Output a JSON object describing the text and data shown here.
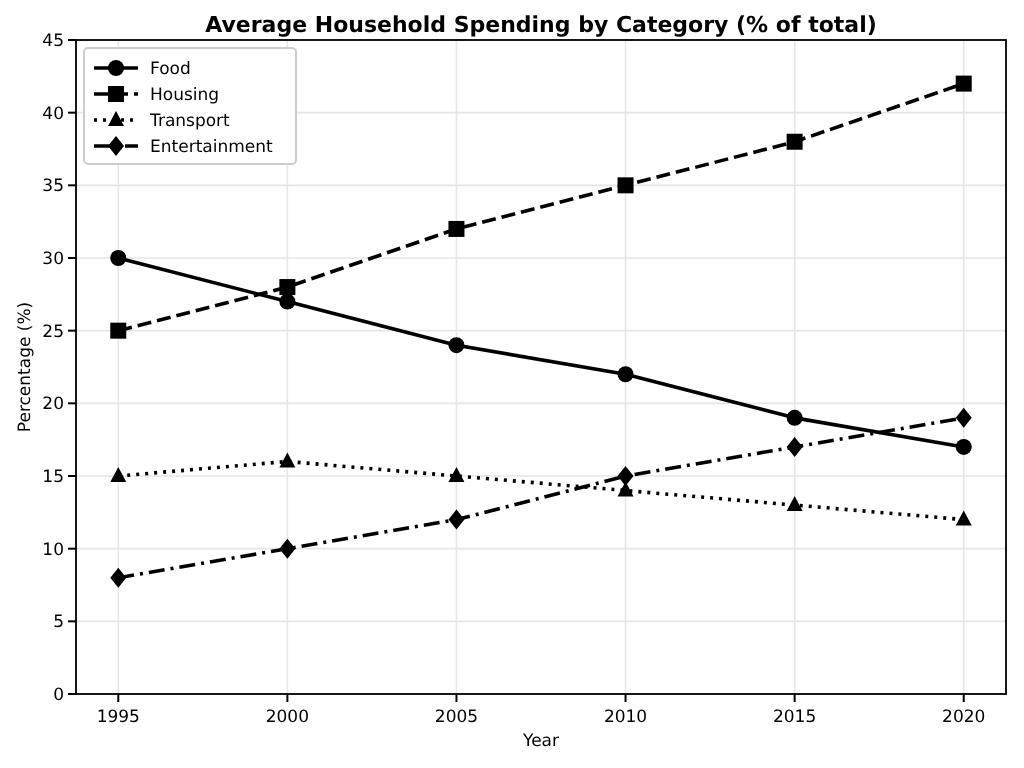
{
  "chart_data": {
    "type": "line",
    "title": "Average Household Spending by Category (% of total)",
    "xlabel": "Year",
    "ylabel": "Percentage (%)",
    "x": [
      1995,
      2000,
      2005,
      2010,
      2015,
      2020
    ],
    "series": [
      {
        "name": "Food",
        "color": "#000000",
        "values": [
          30,
          27,
          24,
          22,
          19,
          17
        ],
        "marker": "circle",
        "line_style": "solid"
      },
      {
        "name": "Housing",
        "color": "#000000",
        "values": [
          25,
          28,
          32,
          35,
          38,
          42
        ],
        "marker": "square",
        "line_style": "dashed"
      },
      {
        "name": "Transport",
        "color": "#000000",
        "values": [
          15,
          16,
          15,
          14,
          13,
          12
        ],
        "marker": "triangle",
        "line_style": "dotted"
      },
      {
        "name": "Entertainment",
        "color": "#000000",
        "values": [
          8,
          10,
          12,
          15,
          17,
          19
        ],
        "marker": "diamond",
        "line_style": "dashdot"
      }
    ],
    "xlim": [
      1993.75,
      2021.25
    ],
    "xticks": [
      1995,
      2000,
      2005,
      2010,
      2015,
      2020
    ],
    "ylim": [
      0,
      45
    ],
    "yticks": [
      0,
      5,
      10,
      15,
      20,
      25,
      30,
      35,
      40,
      45
    ],
    "grid": true,
    "legend": "top left"
  }
}
